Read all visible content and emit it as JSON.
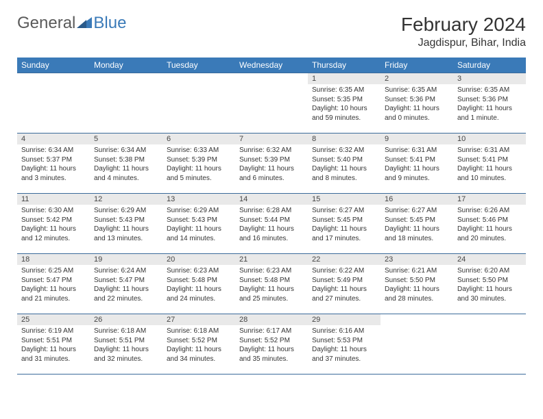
{
  "logo": {
    "text1": "General",
    "text2": "Blue"
  },
  "title": "February 2024",
  "location": "Jagdispur, Bihar, India",
  "colors": {
    "header_bg": "#3a7ab8",
    "header_text": "#ffffff",
    "daynum_bg": "#e9e9e9",
    "border": "#3a6a9a",
    "logo_gray": "#5a5a5a",
    "logo_blue": "#3a7ab8"
  },
  "weekdays": [
    "Sunday",
    "Monday",
    "Tuesday",
    "Wednesday",
    "Thursday",
    "Friday",
    "Saturday"
  ],
  "layout": {
    "first_weekday_index": 4,
    "num_days": 29
  },
  "days": {
    "1": {
      "sunrise": "6:35 AM",
      "sunset": "5:35 PM",
      "daylight": "10 hours and 59 minutes."
    },
    "2": {
      "sunrise": "6:35 AM",
      "sunset": "5:36 PM",
      "daylight": "11 hours and 0 minutes."
    },
    "3": {
      "sunrise": "6:35 AM",
      "sunset": "5:36 PM",
      "daylight": "11 hours and 1 minute."
    },
    "4": {
      "sunrise": "6:34 AM",
      "sunset": "5:37 PM",
      "daylight": "11 hours and 3 minutes."
    },
    "5": {
      "sunrise": "6:34 AM",
      "sunset": "5:38 PM",
      "daylight": "11 hours and 4 minutes."
    },
    "6": {
      "sunrise": "6:33 AM",
      "sunset": "5:39 PM",
      "daylight": "11 hours and 5 minutes."
    },
    "7": {
      "sunrise": "6:32 AM",
      "sunset": "5:39 PM",
      "daylight": "11 hours and 6 minutes."
    },
    "8": {
      "sunrise": "6:32 AM",
      "sunset": "5:40 PM",
      "daylight": "11 hours and 8 minutes."
    },
    "9": {
      "sunrise": "6:31 AM",
      "sunset": "5:41 PM",
      "daylight": "11 hours and 9 minutes."
    },
    "10": {
      "sunrise": "6:31 AM",
      "sunset": "5:41 PM",
      "daylight": "11 hours and 10 minutes."
    },
    "11": {
      "sunrise": "6:30 AM",
      "sunset": "5:42 PM",
      "daylight": "11 hours and 12 minutes."
    },
    "12": {
      "sunrise": "6:29 AM",
      "sunset": "5:43 PM",
      "daylight": "11 hours and 13 minutes."
    },
    "13": {
      "sunrise": "6:29 AM",
      "sunset": "5:43 PM",
      "daylight": "11 hours and 14 minutes."
    },
    "14": {
      "sunrise": "6:28 AM",
      "sunset": "5:44 PM",
      "daylight": "11 hours and 16 minutes."
    },
    "15": {
      "sunrise": "6:27 AM",
      "sunset": "5:45 PM",
      "daylight": "11 hours and 17 minutes."
    },
    "16": {
      "sunrise": "6:27 AM",
      "sunset": "5:45 PM",
      "daylight": "11 hours and 18 minutes."
    },
    "17": {
      "sunrise": "6:26 AM",
      "sunset": "5:46 PM",
      "daylight": "11 hours and 20 minutes."
    },
    "18": {
      "sunrise": "6:25 AM",
      "sunset": "5:47 PM",
      "daylight": "11 hours and 21 minutes."
    },
    "19": {
      "sunrise": "6:24 AM",
      "sunset": "5:47 PM",
      "daylight": "11 hours and 22 minutes."
    },
    "20": {
      "sunrise": "6:23 AM",
      "sunset": "5:48 PM",
      "daylight": "11 hours and 24 minutes."
    },
    "21": {
      "sunrise": "6:23 AM",
      "sunset": "5:48 PM",
      "daylight": "11 hours and 25 minutes."
    },
    "22": {
      "sunrise": "6:22 AM",
      "sunset": "5:49 PM",
      "daylight": "11 hours and 27 minutes."
    },
    "23": {
      "sunrise": "6:21 AM",
      "sunset": "5:50 PM",
      "daylight": "11 hours and 28 minutes."
    },
    "24": {
      "sunrise": "6:20 AM",
      "sunset": "5:50 PM",
      "daylight": "11 hours and 30 minutes."
    },
    "25": {
      "sunrise": "6:19 AM",
      "sunset": "5:51 PM",
      "daylight": "11 hours and 31 minutes."
    },
    "26": {
      "sunrise": "6:18 AM",
      "sunset": "5:51 PM",
      "daylight": "11 hours and 32 minutes."
    },
    "27": {
      "sunrise": "6:18 AM",
      "sunset": "5:52 PM",
      "daylight": "11 hours and 34 minutes."
    },
    "28": {
      "sunrise": "6:17 AM",
      "sunset": "5:52 PM",
      "daylight": "11 hours and 35 minutes."
    },
    "29": {
      "sunrise": "6:16 AM",
      "sunset": "5:53 PM",
      "daylight": "11 hours and 37 minutes."
    }
  },
  "labels": {
    "sunrise": "Sunrise:",
    "sunset": "Sunset:",
    "daylight": "Daylight:"
  }
}
